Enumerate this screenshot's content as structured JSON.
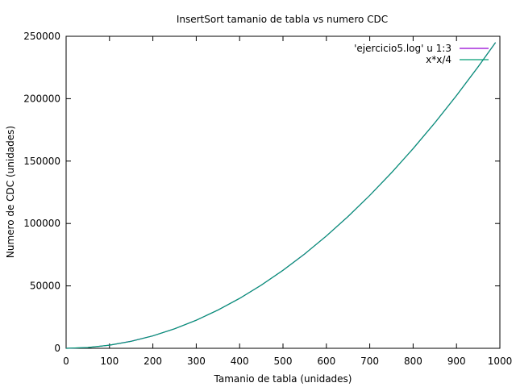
{
  "chart_data": {
    "type": "line",
    "title": "InsertSort tamanio de tabla vs numero CDC",
    "xlabel": "Tamanio de tabla (unidades)",
    "ylabel": "Numero de CDC (unidades)",
    "xlim": [
      0,
      1000
    ],
    "ylim": [
      0,
      250000
    ],
    "xticks": [
      0,
      100,
      200,
      300,
      400,
      500,
      600,
      700,
      800,
      900,
      1000
    ],
    "yticks": [
      0,
      50000,
      100000,
      150000,
      200000,
      250000
    ],
    "grid": false,
    "legend_position": "top-right",
    "series": [
      {
        "name": "'ejercicio5.log' u 1:3",
        "color": "#9400d3",
        "x": [
          0,
          50,
          100,
          150,
          200,
          250,
          300,
          350,
          400,
          450,
          500,
          550,
          600,
          650,
          700,
          750,
          800,
          850,
          900,
          950,
          990
        ],
        "values": [
          0,
          620,
          2500,
          5650,
          10000,
          15600,
          22500,
          30650,
          40000,
          50600,
          62500,
          75600,
          90000,
          105600,
          122500,
          140600,
          160000,
          180600,
          202500,
          225600,
          245000
        ]
      },
      {
        "name": "x*x/4",
        "color": "#009e73",
        "x": [
          0,
          50,
          100,
          150,
          200,
          250,
          300,
          350,
          400,
          450,
          500,
          550,
          600,
          650,
          700,
          750,
          800,
          850,
          900,
          950,
          990
        ],
        "values": [
          0,
          625,
          2500,
          5625,
          10000,
          15625,
          22500,
          30625,
          40000,
          50625,
          62500,
          75625,
          90000,
          105625,
          122500,
          140625,
          160000,
          180625,
          202500,
          225625,
          245025
        ]
      }
    ]
  }
}
